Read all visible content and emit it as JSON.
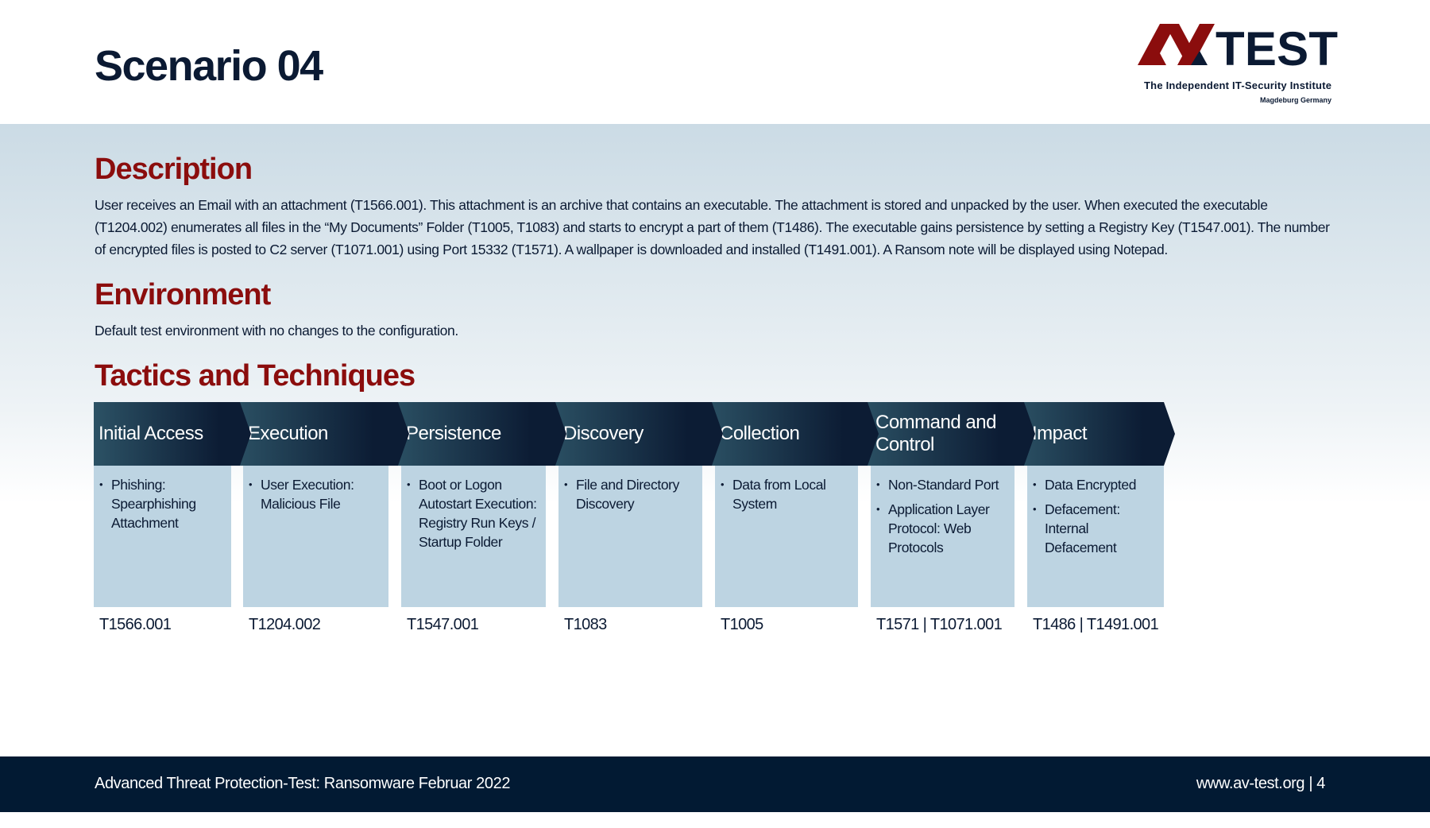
{
  "header": {
    "title": "Scenario 04"
  },
  "logo": {
    "brand": "AV-TEST",
    "tagline": "The Independent IT-Security Institute",
    "location": "Magdeburg Germany"
  },
  "description": {
    "heading": "Description",
    "text": "User receives an Email with an attachment (T1566.001). This attachment is an archive that contains an executable. The attachment is stored and unpacked by the user. When executed the executable (T1204.002) enumerates all files in the “My Documents” Folder (T1005, T1083) and starts to encrypt a part of them (T1486). The executable gains persistence by setting a Registry Key (T1547.001). The number of encrypted files is posted to C2 server (T1071.001) using Port 15332 (T1571). A wallpaper is downloaded and installed (T1491.001). A Ransom note will be displayed using Notepad."
  },
  "environment": {
    "heading": "Environment",
    "text": "Default test environment with no changes to the configuration."
  },
  "tactics": {
    "heading": "Tactics and Techniques",
    "columns": [
      {
        "tactic": "Initial Access",
        "techniques": [
          "Phishing: Spearphishing Attachment"
        ],
        "codes": "T1566.001"
      },
      {
        "tactic": "Execution",
        "techniques": [
          "User Execution: Malicious File"
        ],
        "codes": "T1204.002"
      },
      {
        "tactic": "Persistence",
        "techniques": [
          "Boot or Logon Autostart Execution: Registry Run Keys / Startup Folder"
        ],
        "codes": "T1547.001"
      },
      {
        "tactic": "Discovery",
        "techniques": [
          "File and Directory Discovery"
        ],
        "codes": "T1083"
      },
      {
        "tactic": "Collection",
        "techniques": [
          "Data from Local System"
        ],
        "codes": "T1005"
      },
      {
        "tactic": "Command and Control",
        "techniques": [
          "Non-Standard Port",
          "Application Layer Protocol: Web Protocols"
        ],
        "codes": "T1571 | T1071.001"
      },
      {
        "tactic": "Impact",
        "techniques": [
          "Data Encrypted",
          "Defacement: Internal Defacement"
        ],
        "codes": "T1486 | T1491.001"
      }
    ]
  },
  "footer": {
    "left": "Advanced Threat Protection-Test: Ransomware Februar 2022",
    "right": "www.av-test.org | 4"
  },
  "colors": {
    "accent_red": "#8b0d0d",
    "navy": "#0b1a33",
    "cell": "#bdd4e2",
    "footer": "#021a33"
  }
}
